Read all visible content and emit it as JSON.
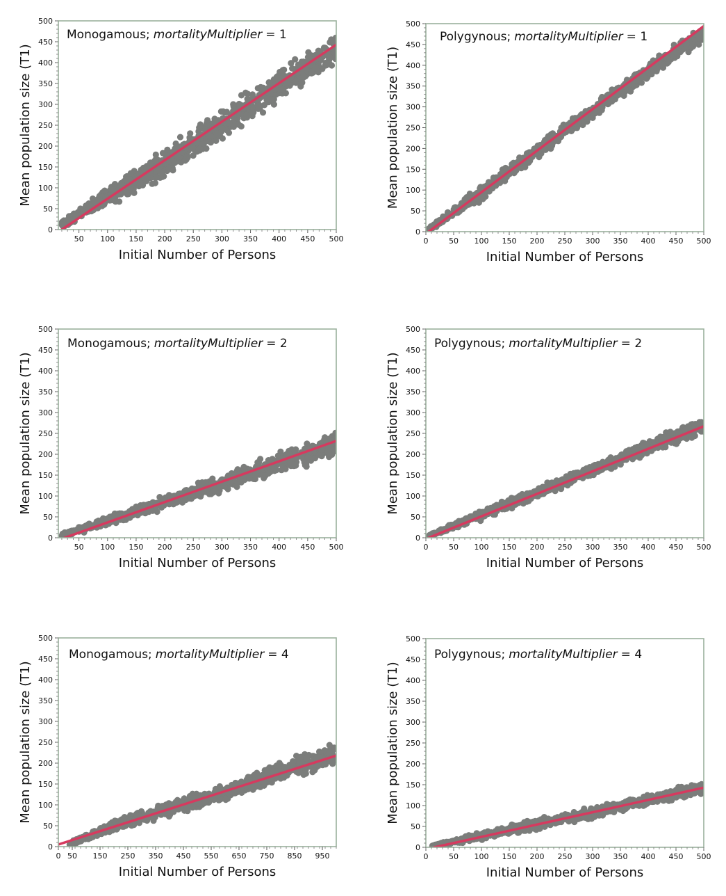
{
  "colors": {
    "points": "#7b7d7b",
    "fit_line": "#d63a5f",
    "frame": "#9ab09d",
    "background": "#ffffff"
  },
  "chart_data": [
    {
      "type": "scatter",
      "title_plain": "Monogamous;",
      "title_italic": "mortalityMultiplier",
      "title_suffix": "= 1",
      "xlabel": "Initial Number of Persons",
      "ylabel": "Mean population size (T1)",
      "xlim": [
        14,
        500
      ],
      "ylim": [
        0,
        500
      ],
      "xticks": [
        50,
        100,
        150,
        200,
        250,
        300,
        350,
        400,
        450,
        500
      ],
      "yticks": [
        0,
        50,
        100,
        150,
        200,
        250,
        300,
        350,
        400,
        450,
        500
      ],
      "grid": false,
      "scatter_band": {
        "x": [
          20,
          100,
          200,
          300,
          400,
          500
        ],
        "y_low": [
          0,
          50,
          115,
          205,
          300,
          385
        ],
        "y_high": [
          22,
          110,
          200,
          300,
          390,
          480
        ]
      },
      "fit_line": {
        "x": [
          20,
          500
        ],
        "y": [
          0,
          443
        ]
      }
    },
    {
      "type": "scatter",
      "title_plain": "Polygynous;",
      "title_italic": "mortalityMultiplier",
      "title_suffix": "= 1",
      "xlabel": "Initial Number of Persons",
      "ylabel": "Mean population size (T1)",
      "xlim": [
        0,
        500
      ],
      "ylim": [
        0,
        500
      ],
      "xticks": [
        0,
        50,
        100,
        150,
        200,
        250,
        300,
        350,
        400,
        450,
        500
      ],
      "yticks": [
        0,
        50,
        100,
        150,
        200,
        250,
        300,
        350,
        400,
        450,
        500
      ],
      "grid": false,
      "scatter_band": {
        "x": [
          5,
          100,
          200,
          300,
          400,
          500
        ],
        "y_low": [
          0,
          70,
          175,
          270,
          365,
          455
        ],
        "y_high": [
          12,
          115,
          215,
          310,
          410,
          500
        ]
      },
      "fit_line": {
        "x": [
          5,
          500
        ],
        "y": [
          0,
          494
        ]
      }
    },
    {
      "type": "scatter",
      "title_plain": "Monogamous;",
      "title_italic": "mortalityMultiplier",
      "title_suffix": "= 2",
      "xlabel": "Initial Number of Persons",
      "ylabel": "Mean population size (T1)",
      "xlim": [
        14,
        500
      ],
      "ylim": [
        0,
        500
      ],
      "xticks": [
        50,
        100,
        150,
        200,
        250,
        300,
        350,
        400,
        450,
        500
      ],
      "yticks": [
        0,
        50,
        100,
        150,
        200,
        250,
        300,
        350,
        400,
        450,
        500
      ],
      "grid": false,
      "scatter_band": {
        "x": [
          20,
          100,
          200,
          300,
          400,
          500
        ],
        "y_low": [
          0,
          25,
          65,
          105,
          150,
          185
        ],
        "y_high": [
          12,
          55,
          105,
          155,
          210,
          265
        ]
      },
      "fit_line": {
        "x": [
          25,
          500
        ],
        "y": [
          0,
          232
        ]
      }
    },
    {
      "type": "scatter",
      "title_plain": "Polygynous;",
      "title_italic": "mortalityMultiplier",
      "title_suffix": "= 2",
      "xlabel": "Initial Number of Persons",
      "ylabel": "Mean population size (T1)",
      "xlim": [
        0,
        500
      ],
      "ylim": [
        0,
        500
      ],
      "xticks": [
        0,
        50,
        100,
        150,
        200,
        250,
        300,
        350,
        400,
        450,
        500
      ],
      "yticks": [
        0,
        50,
        100,
        150,
        200,
        250,
        300,
        350,
        400,
        450,
        500
      ],
      "grid": false,
      "scatter_band": {
        "x": [
          5,
          100,
          200,
          300,
          400,
          500
        ],
        "y_low": [
          0,
          40,
          90,
          145,
          195,
          245
        ],
        "y_high": [
          8,
          70,
          125,
          180,
          235,
          295
        ]
      },
      "fit_line": {
        "x": [
          5,
          500
        ],
        "y": [
          0,
          267
        ]
      }
    },
    {
      "type": "scatter",
      "title_plain": "Monogamous;",
      "title_italic": "mortalityMultiplier",
      "title_suffix": "= 4",
      "xlabel": "Initial Number of Persons",
      "ylabel": "Mean population size (T1)",
      "xlim": [
        0,
        1000
      ],
      "ylim": [
        0,
        500
      ],
      "xticks": [
        0,
        50,
        150,
        250,
        350,
        450,
        550,
        650,
        750,
        850,
        950
      ],
      "yticks": [
        0,
        50,
        100,
        150,
        200,
        250,
        300,
        350,
        400,
        450,
        500
      ],
      "grid": false,
      "scatter_band": {
        "x": [
          40,
          200,
          400,
          600,
          800,
          1000
        ],
        "y_low": [
          0,
          35,
          70,
          105,
          150,
          190
        ],
        "y_high": [
          12,
          65,
          115,
          150,
          210,
          255
        ]
      },
      "fit_line": {
        "x": [
          0,
          1000
        ],
        "y": [
          5,
          218
        ]
      }
    },
    {
      "type": "scatter",
      "title_plain": "Polygynous;",
      "title_italic": "mortalityMultiplier",
      "title_suffix": "= 4",
      "xlabel": "Initial Number of Persons",
      "ylabel": "Mean population size (T1)",
      "xlim": [
        0,
        500
      ],
      "ylim": [
        0,
        500
      ],
      "xticks": [
        0,
        50,
        100,
        150,
        200,
        250,
        300,
        350,
        400,
        450,
        500
      ],
      "yticks": [
        0,
        50,
        100,
        150,
        200,
        250,
        300,
        350,
        400,
        450,
        500
      ],
      "grid": false,
      "scatter_band": {
        "x": [
          10,
          100,
          200,
          300,
          400,
          500
        ],
        "y_low": [
          0,
          15,
          40,
          65,
          95,
          125
        ],
        "y_high": [
          5,
          40,
          70,
          100,
          130,
          160
        ]
      },
      "fit_line": {
        "x": [
          15,
          500
        ],
        "y": [
          0,
          143
        ]
      }
    }
  ]
}
